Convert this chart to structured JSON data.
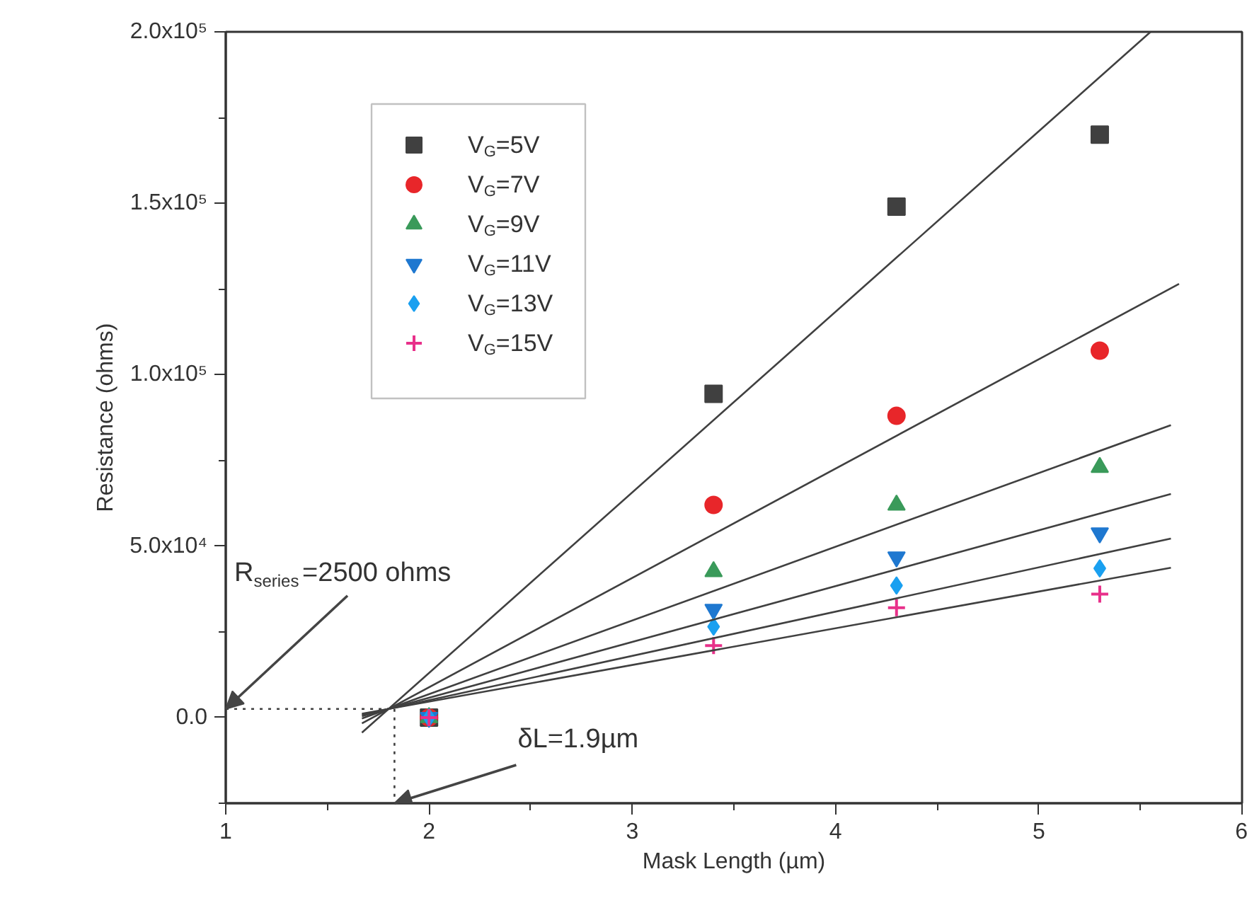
{
  "chart_data": {
    "type": "scatter",
    "xlabel": "Mask Length (µm)",
    "ylabel": "Resistance (ohms)",
    "xlim": [
      1,
      6
    ],
    "ylim": [
      -25000,
      200000
    ],
    "xticks": [
      1,
      {
        "value": 1.5,
        "label": null
      },
      2,
      {
        "value": 2.5,
        "label": null
      },
      3,
      {
        "value": 3.5,
        "label": null
      },
      4,
      {
        "value": 4.5,
        "label": null
      },
      5,
      {
        "value": 5.5,
        "label": null
      },
      6
    ],
    "yticks": [
      {
        "value": -25000,
        "label": null
      },
      {
        "value": 0,
        "label": "0.0"
      },
      {
        "value": 25000,
        "label": null
      },
      {
        "value": 50000,
        "label": "5.0x10⁴"
      },
      {
        "value": 75000,
        "label": null
      },
      {
        "value": 100000,
        "label": "1.0x10⁵"
      },
      {
        "value": 125000,
        "label": null
      },
      {
        "value": 150000,
        "label": "1.5x10⁵"
      },
      {
        "value": 175000,
        "label": null
      },
      {
        "value": 200000,
        "label": "2.0x10⁵"
      }
    ],
    "grid": false,
    "legend": "top left",
    "x": [
      2,
      3.4,
      4.3,
      5.3
    ],
    "series": [
      {
        "name": "V$_{G}$=5V",
        "color": "#404040",
        "marker": "square",
        "values": [
          0,
          94400,
          149000,
          170000
        ]
      },
      {
        "name": "V$_{G}$=7V",
        "color": "#e8262a",
        "marker": "circle",
        "values": [
          0,
          62000,
          88000,
          107000
        ]
      },
      {
        "name": "V$_{G}$=9V",
        "color": "#3a9a5a",
        "marker": "triangle",
        "values": [
          0,
          42600,
          62000,
          73000
        ]
      },
      {
        "name": "V$_{G}$=11V",
        "color": "#1f78d0",
        "marker": "triangle_down",
        "values": [
          0,
          31500,
          46800,
          53800
        ]
      },
      {
        "name": "V$_{G}$=13V",
        "color": "#1aa0f0",
        "marker": "diamond",
        "values": [
          0,
          26500,
          38500,
          43500
        ]
      },
      {
        "name": "V$_{G}$=15V",
        "color": "#e8308a",
        "marker": "cross",
        "values": [
          0,
          21000,
          32000,
          36000
        ]
      },
      {
        "type": "line",
        "color": "#404040",
        "marker": "none",
        "line_style": "solid",
        "x": [
          1.67,
          5.55
        ],
        "values": [
          -4400,
          200000
        ]
      },
      {
        "type": "line",
        "color": "#404040",
        "marker": "none",
        "line_style": "solid",
        "x": [
          1.67,
          5.69
        ],
        "values": [
          -1700,
          126500
        ]
      },
      {
        "type": "line",
        "color": "#404040",
        "marker": "none",
        "line_style": "solid",
        "x": [
          1.67,
          5.65
        ],
        "values": [
          -300,
          85300
        ]
      },
      {
        "type": "line",
        "color": "#404040",
        "marker": "none",
        "line_style": "solid",
        "x": [
          1.67,
          5.65
        ],
        "values": [
          400,
          65200
        ]
      },
      {
        "type": "line",
        "color": "#404040",
        "marker": "none",
        "line_style": "solid",
        "x": [
          1.67,
          5.65
        ],
        "values": [
          800,
          52200
        ]
      },
      {
        "type": "line",
        "color": "#404040",
        "marker": "none",
        "line_style": "solid",
        "x": [
          1.67,
          5.65
        ],
        "values": [
          1100,
          43700
        ]
      },
      {
        "type": "line",
        "color": "#404040",
        "marker": "none",
        "line_style": "dotted",
        "x": [
          1,
          1.83
        ],
        "values": [
          2500,
          2500
        ]
      },
      {
        "type": "line",
        "color": "#404040",
        "marker": "none",
        "line_style": "dotted",
        "x": [
          1.83,
          1.83
        ],
        "values": [
          2500,
          -25000
        ]
      }
    ],
    "annotations": [
      {
        "text": "R$_{series}$=2500 ohms",
        "x": 1,
        "y": 2500
      },
      {
        "text": "δL=1.9µm",
        "x": 1.83,
        "y": -25000
      }
    ]
  }
}
